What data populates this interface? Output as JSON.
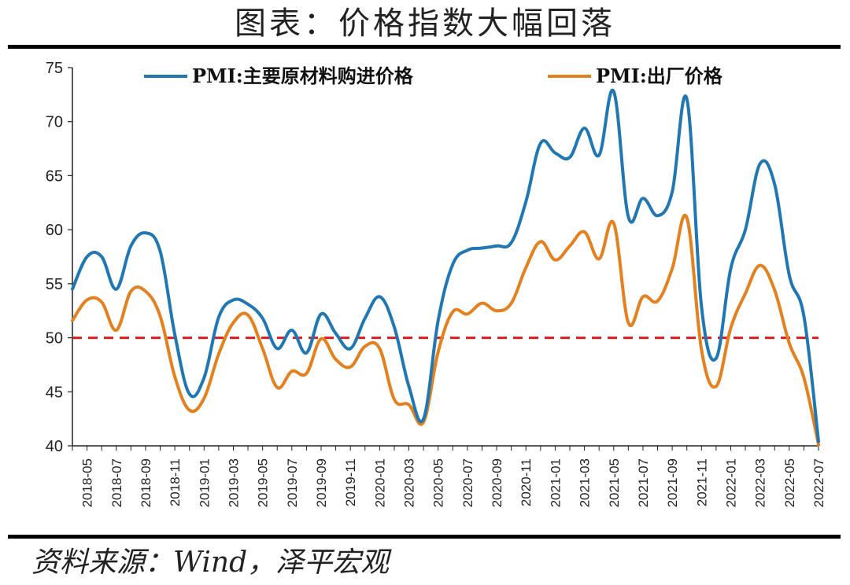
{
  "title": "图表：价格指数大幅回落",
  "source": "资料来源：Wind，泽平宏观",
  "colors": {
    "series1": "#1f77b4",
    "series2": "#e5801e",
    "reference": "#e11b1b",
    "axis": "#222222"
  },
  "chart_data": {
    "type": "line",
    "title": "图表：价格指数大幅回落",
    "xlabel": "",
    "ylabel": "",
    "ylim": [
      40,
      75
    ],
    "yticks": [
      40,
      45,
      50,
      55,
      60,
      65,
      70,
      75
    ],
    "grid": false,
    "legend_position": "top",
    "reference_line": {
      "y": 50,
      "style": "dashed"
    },
    "x": [
      "2018-04",
      "2018-05",
      "2018-06",
      "2018-07",
      "2018-08",
      "2018-09",
      "2018-10",
      "2018-11",
      "2018-12",
      "2019-01",
      "2019-02",
      "2019-03",
      "2019-04",
      "2019-05",
      "2019-06",
      "2019-07",
      "2019-08",
      "2019-09",
      "2019-10",
      "2019-11",
      "2019-12",
      "2020-01",
      "2020-02",
      "2020-03",
      "2020-04",
      "2020-05",
      "2020-06",
      "2020-07",
      "2020-08",
      "2020-09",
      "2020-10",
      "2020-11",
      "2020-12",
      "2021-01",
      "2021-02",
      "2021-03",
      "2021-04",
      "2021-05",
      "2021-06",
      "2021-07",
      "2021-08",
      "2021-09",
      "2021-10",
      "2021-11",
      "2021-12",
      "2022-01",
      "2022-02",
      "2022-03",
      "2022-04",
      "2022-05",
      "2022-06",
      "2022-07"
    ],
    "xtick_labels": [
      "2018-05",
      "2018-07",
      "2018-09",
      "2018-11",
      "2019-01",
      "2019-03",
      "2019-05",
      "2019-07",
      "2019-09",
      "2019-11",
      "2020-01",
      "2020-03",
      "2020-05",
      "2020-07",
      "2020-09",
      "2020-11",
      "2021-01",
      "2021-03",
      "2021-05",
      "2021-07",
      "2021-09",
      "2021-11",
      "2022-01",
      "2022-03",
      "2022-05",
      "2022-07"
    ],
    "series": [
      {
        "name": "PMI:主要原材料购进价格",
        "color": "#1f77b4",
        "values": [
          54.5,
          57.5,
          57.5,
          54.5,
          58.5,
          59.7,
          58.0,
          50.3,
          44.8,
          46.3,
          51.9,
          53.5,
          53.1,
          51.8,
          49.0,
          50.7,
          48.6,
          52.2,
          50.4,
          49.0,
          51.8,
          53.8,
          51.0,
          45.5,
          42.5,
          51.6,
          56.8,
          58.1,
          58.3,
          58.5,
          58.8,
          62.6,
          68.0,
          67.1,
          66.7,
          69.4,
          66.9,
          72.8,
          61.2,
          62.9,
          61.3,
          63.5,
          72.1,
          52.9,
          48.1,
          56.4,
          60.0,
          66.1,
          64.2,
          55.8,
          52.0,
          40.4
        ]
      },
      {
        "name": "PMI:出厂价格",
        "color": "#e5801e",
        "values": [
          51.6,
          53.5,
          53.3,
          50.7,
          54.3,
          54.3,
          52.0,
          46.4,
          43.3,
          44.4,
          48.5,
          51.4,
          52.1,
          49.0,
          45.4,
          46.9,
          46.7,
          49.9,
          48.0,
          47.3,
          49.2,
          49.0,
          44.3,
          43.8,
          42.2,
          48.7,
          52.4,
          52.2,
          53.2,
          52.5,
          53.2,
          56.5,
          58.9,
          57.2,
          58.5,
          59.8,
          57.3,
          60.6,
          51.4,
          53.8,
          53.4,
          56.4,
          61.1,
          48.9,
          45.5,
          50.9,
          54.1,
          56.7,
          54.4,
          49.5,
          46.3,
          40.1
        ]
      }
    ]
  }
}
